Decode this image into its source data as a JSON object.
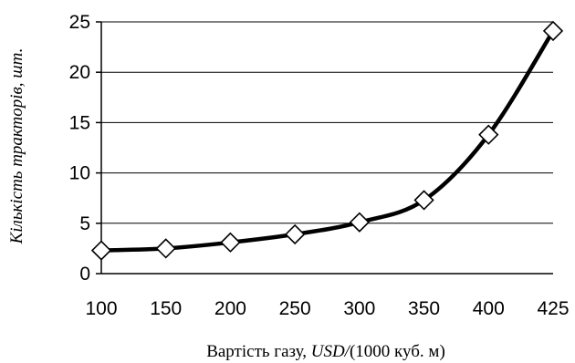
{
  "chart_data": {
    "type": "line",
    "title": "",
    "xlabel": "Вартість газу, USD/(1000 куб. м)",
    "xlabel_parts": [
      "Вартість газу, ",
      "USD/",
      "(1000 куб. м)"
    ],
    "ylabel": "Кількість тракторів, шт.",
    "categories": [
      "100",
      "150",
      "200",
      "250",
      "300",
      "350",
      "400",
      "425"
    ],
    "y_ticks": [
      "0",
      "5",
      "10",
      "15",
      "20",
      "25"
    ],
    "ylim": [
      0,
      25
    ],
    "grid": true,
    "legend": "none",
    "series": [
      {
        "values": [
          2.3,
          2.5,
          3.1,
          3.9,
          5.1,
          7.3,
          13.8,
          24.1
        ],
        "marker": "diamond-open",
        "color": "#000000"
      }
    ]
  }
}
